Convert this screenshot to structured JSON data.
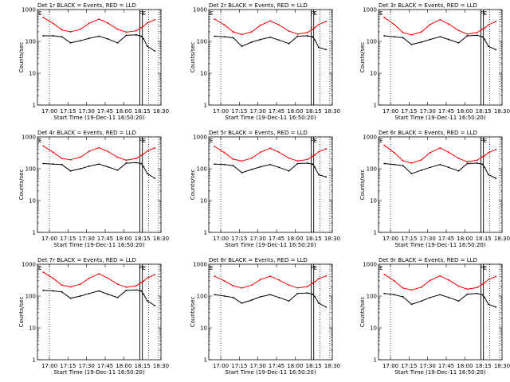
{
  "figure": {
    "xlabel": "Start Time (19-Dec-11 16:50:20)",
    "ylabel": "Counts/sec",
    "x_ticks": [
      "17:00",
      "17:15",
      "17:30",
      "17:45",
      "18:00",
      "18:15",
      "18:30"
    ],
    "y_ticks": [
      "1",
      "10",
      "100",
      "1000"
    ],
    "flag_labels": [
      "E",
      "FE"
    ],
    "colors": {
      "events": "#000000",
      "lld": "#ff0000",
      "axes": "#000000"
    }
  },
  "chart_data": [
    {
      "type": "line",
      "title": "Det 1r BLACK = Events, RED = LLD",
      "xlabel": "Start Time (19-Dec-11 16:50:20)",
      "ylabel": "Counts/sec",
      "y_scale": "log",
      "ylim": [
        1,
        1000
      ],
      "xlim": [
        "16:50:20",
        "18:30"
      ],
      "x": [
        "16:55",
        "17:03",
        "17:10",
        "17:17",
        "17:25",
        "17:32",
        "17:40",
        "17:47",
        "17:55",
        "18:02",
        "18:10",
        "18:14",
        "18:16",
        "18:19",
        "18:25"
      ],
      "series": [
        {
          "name": "RED = LLD",
          "color": "#ff0000",
          "values": [
            560,
            370,
            230,
            200,
            240,
            370,
            500,
            380,
            240,
            195,
            215,
            270,
            300,
            380,
            480
          ]
        },
        {
          "name": "BLACK = Events",
          "color": "#000000",
          "values": [
            150,
            150,
            140,
            90,
            105,
            125,
            145,
            120,
            90,
            155,
            160,
            145,
            120,
            70,
            50
          ]
        }
      ],
      "vertical_lines": [
        "17:00",
        "18:13",
        "18:15",
        "18:20",
        "18:28"
      ]
    },
    {
      "type": "line",
      "title": "Det 2r BLACK = Events, RED = LLD",
      "xlabel": "Start Time (19-Dec-11 16:50:20)",
      "ylabel": "Counts/sec",
      "y_scale": "log",
      "ylim": [
        1,
        1000
      ],
      "xlim": [
        "16:50:20",
        "18:30"
      ],
      "x": [
        "16:55",
        "17:03",
        "17:10",
        "17:17",
        "17:25",
        "17:32",
        "17:40",
        "17:47",
        "17:55",
        "18:02",
        "18:10",
        "18:14",
        "18:16",
        "18:19",
        "18:25"
      ],
      "series": [
        {
          "name": "RED = LLD",
          "color": "#ff0000",
          "values": [
            500,
            330,
            200,
            165,
            200,
            320,
            440,
            330,
            210,
            170,
            190,
            240,
            270,
            340,
            420
          ]
        },
        {
          "name": "BLACK = Events",
          "color": "#000000",
          "values": [
            145,
            140,
            130,
            70,
            95,
            115,
            135,
            110,
            85,
            145,
            150,
            140,
            110,
            65,
            55
          ]
        }
      ],
      "vertical_lines": [
        "17:00",
        "18:13",
        "18:15",
        "18:20",
        "18:28"
      ]
    },
    {
      "type": "line",
      "title": "Det 3r BLACK = Events, RED = LLD",
      "xlabel": "Start Time (19-Dec-11 16:50:20)",
      "ylabel": "Counts/sec",
      "y_scale": "log",
      "ylim": [
        1,
        1000
      ],
      "xlim": [
        "16:50:20",
        "18:30"
      ],
      "x": [
        "16:55",
        "17:03",
        "17:10",
        "17:17",
        "17:25",
        "17:32",
        "17:40",
        "17:47",
        "17:55",
        "18:02",
        "18:10",
        "18:14",
        "18:16",
        "18:19",
        "18:25"
      ],
      "series": [
        {
          "name": "RED = LLD",
          "color": "#ff0000",
          "values": [
            560,
            340,
            190,
            160,
            200,
            340,
            480,
            350,
            220,
            170,
            190,
            240,
            260,
            330,
            420
          ]
        },
        {
          "name": "BLACK = Events",
          "color": "#000000",
          "values": [
            150,
            140,
            130,
            80,
            95,
            115,
            140,
            115,
            90,
            150,
            155,
            140,
            115,
            70,
            55
          ]
        }
      ],
      "vertical_lines": [
        "17:00",
        "18:13",
        "18:15",
        "18:20",
        "18:28"
      ]
    },
    {
      "type": "line",
      "title": "Det 4r BLACK = Events, RED = LLD",
      "xlabel": "Start Time (19-Dec-11 16:50:20)",
      "ylabel": "Counts/sec",
      "y_scale": "log",
      "ylim": [
        1,
        1000
      ],
      "xlim": [
        "16:50:20",
        "18:30"
      ],
      "x": [
        "16:55",
        "17:03",
        "17:10",
        "17:17",
        "17:25",
        "17:32",
        "17:40",
        "17:47",
        "17:55",
        "18:02",
        "18:10",
        "18:14",
        "18:16",
        "18:19",
        "18:25"
      ],
      "series": [
        {
          "name": "RED = LLD",
          "color": "#ff0000",
          "values": [
            520,
            330,
            210,
            190,
            230,
            350,
            460,
            350,
            230,
            185,
            210,
            260,
            290,
            360,
            450
          ]
        },
        {
          "name": "BLACK = Events",
          "color": "#000000",
          "values": [
            145,
            140,
            135,
            85,
            100,
            120,
            140,
            115,
            90,
            150,
            155,
            145,
            115,
            70,
            50
          ]
        }
      ],
      "vertical_lines": [
        "17:00",
        "18:13",
        "18:15",
        "18:20",
        "18:28"
      ]
    },
    {
      "type": "line",
      "title": "Det 5r BLACK = Events, RED = LLD",
      "xlabel": "Start Time (19-Dec-11 16:50:20)",
      "ylabel": "Counts/sec",
      "y_scale": "log",
      "ylim": [
        1,
        1000
      ],
      "xlim": [
        "16:50:20",
        "18:30"
      ],
      "x": [
        "16:55",
        "17:03",
        "17:10",
        "17:17",
        "17:25",
        "17:32",
        "17:40",
        "17:47",
        "17:55",
        "18:02",
        "18:10",
        "18:14",
        "18:16",
        "18:19",
        "18:25"
      ],
      "series": [
        {
          "name": "RED = LLD",
          "color": "#ff0000",
          "values": [
            500,
            320,
            200,
            175,
            215,
            330,
            440,
            330,
            215,
            175,
            195,
            245,
            270,
            340,
            420
          ]
        },
        {
          "name": "BLACK = Events",
          "color": "#000000",
          "values": [
            140,
            135,
            125,
            75,
            95,
            115,
            135,
            110,
            85,
            145,
            150,
            140,
            110,
            65,
            55
          ]
        }
      ],
      "vertical_lines": [
        "17:00",
        "18:13",
        "18:15",
        "18:20",
        "18:28"
      ]
    },
    {
      "type": "line",
      "title": "Det 6r BLACK = Events, RED = LLD",
      "xlabel": "Start Time (19-Dec-11 16:50:20)",
      "ylabel": "Counts/sec",
      "y_scale": "log",
      "ylim": [
        1,
        1000
      ],
      "xlim": [
        "16:50:20",
        "18:30"
      ],
      "x": [
        "16:55",
        "17:03",
        "17:10",
        "17:17",
        "17:25",
        "17:32",
        "17:40",
        "17:47",
        "17:55",
        "18:02",
        "18:10",
        "18:14",
        "18:16",
        "18:19",
        "18:25"
      ],
      "series": [
        {
          "name": "RED = LLD",
          "color": "#ff0000",
          "values": [
            540,
            320,
            180,
            150,
            190,
            320,
            450,
            330,
            210,
            165,
            185,
            235,
            255,
            320,
            400
          ]
        },
        {
          "name": "BLACK = Events",
          "color": "#000000",
          "values": [
            145,
            135,
            125,
            70,
            90,
            110,
            135,
            110,
            85,
            145,
            150,
            140,
            110,
            65,
            50
          ]
        }
      ],
      "vertical_lines": [
        "17:00",
        "18:13",
        "18:15",
        "18:20",
        "18:28"
      ]
    },
    {
      "type": "line",
      "title": "Det 7r BLACK = Events, RED = LLD",
      "xlabel": "Start Time (19-Dec-11 16:50:20)",
      "ylabel": "Counts/sec",
      "y_scale": "log",
      "ylim": [
        1,
        1000
      ],
      "xlim": [
        "16:50:20",
        "18:30"
      ],
      "x": [
        "16:55",
        "17:03",
        "17:10",
        "17:17",
        "17:25",
        "17:32",
        "17:40",
        "17:47",
        "17:55",
        "18:02",
        "18:10",
        "18:14",
        "18:16",
        "18:19",
        "18:25"
      ],
      "series": [
        {
          "name": "RED = LLD",
          "color": "#ff0000",
          "values": [
            560,
            360,
            220,
            195,
            235,
            360,
            500,
            370,
            235,
            190,
            210,
            265,
            295,
            370,
            470
          ]
        },
        {
          "name": "BLACK = Events",
          "color": "#000000",
          "values": [
            150,
            145,
            135,
            85,
            100,
            120,
            145,
            115,
            90,
            150,
            155,
            145,
            115,
            70,
            50
          ]
        }
      ],
      "vertical_lines": [
        "17:00",
        "18:13",
        "18:15",
        "18:20",
        "18:28"
      ]
    },
    {
      "type": "line",
      "title": "Det 8r BLACK = Events, RED = LLD",
      "xlabel": "Start Time (19-Dec-11 16:50:20)",
      "ylabel": "Counts/sec",
      "y_scale": "log",
      "ylim": [
        1,
        1000
      ],
      "xlim": [
        "16:50:20",
        "18:30"
      ],
      "x": [
        "16:55",
        "17:03",
        "17:10",
        "17:17",
        "17:25",
        "17:32",
        "17:40",
        "17:47",
        "17:55",
        "18:02",
        "18:10",
        "18:14",
        "18:16",
        "18:19",
        "18:25"
      ],
      "series": [
        {
          "name": "RED = LLD",
          "color": "#ff0000",
          "values": [
            420,
            300,
            210,
            180,
            220,
            330,
            420,
            320,
            220,
            180,
            200,
            250,
            280,
            350,
            430
          ]
        },
        {
          "name": "BLACK = Events",
          "color": "#000000",
          "values": [
            110,
            100,
            90,
            60,
            75,
            95,
            110,
            90,
            70,
            120,
            125,
            115,
            95,
            60,
            45
          ]
        }
      ],
      "vertical_lines": [
        "17:00",
        "18:13",
        "18:15",
        "18:20",
        "18:28"
      ]
    },
    {
      "type": "line",
      "title": "Det 9r BLACK = Events, RED = LLD",
      "xlabel": "Start Time (19-Dec-11 16:50:20)",
      "ylabel": "Counts/sec",
      "y_scale": "log",
      "ylim": [
        1,
        1000
      ],
      "xlim": [
        "16:50:20",
        "18:30"
      ],
      "x": [
        "16:55",
        "17:03",
        "17:10",
        "17:17",
        "17:25",
        "17:32",
        "17:40",
        "17:47",
        "17:55",
        "18:02",
        "18:10",
        "18:14",
        "18:16",
        "18:19",
        "18:25"
      ],
      "series": [
        {
          "name": "RED = LLD",
          "color": "#ff0000",
          "values": [
            480,
            300,
            180,
            155,
            190,
            310,
            430,
            320,
            205,
            165,
            185,
            235,
            260,
            330,
            410
          ]
        },
        {
          "name": "BLACK = Events",
          "color": "#000000",
          "values": [
            120,
            110,
            95,
            55,
            70,
            90,
            110,
            90,
            70,
            115,
            120,
            110,
            90,
            55,
            45
          ]
        }
      ],
      "vertical_lines": [
        "17:00",
        "18:13",
        "18:15",
        "18:20",
        "18:28"
      ]
    }
  ]
}
